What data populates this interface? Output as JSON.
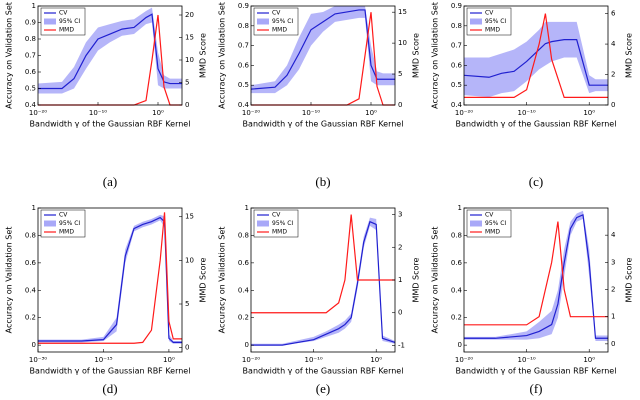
{
  "chart_data": [
    {
      "type": "line",
      "caption": "(a)",
      "xlabel": "Bandwidth γ of the Gaussian RBF Kernel",
      "ylabel": "Accuracy on Validation Set",
      "y2label": "MMD Score",
      "xscale": "log",
      "x": [
        1e-20,
        1e-16,
        1e-14,
        1e-12,
        1e-10,
        1e-08,
        1e-06,
        0.0001,
        0.01,
        0.1,
        1,
        10,
        100,
        10000
      ],
      "xlim": [
        1e-20,
        10000
      ],
      "xticks": [
        {
          "value": 1e-20,
          "label": "10⁻²⁰"
        },
        {
          "value": 1e-10,
          "label": "10⁻¹⁰"
        },
        {
          "value": 1,
          "label": "10⁰"
        }
      ],
      "ylim": [
        0.4,
        1
      ],
      "yticks": [
        0.4,
        0.5,
        0.6,
        0.7,
        0.8,
        0.9,
        1
      ],
      "y2lim": [
        0,
        22
      ],
      "y2ticks": [
        0,
        5,
        10,
        15,
        20
      ],
      "series": [
        {
          "name": "CV",
          "color": "#2020d0",
          "values": [
            0.5,
            0.5,
            0.56,
            0.7,
            0.8,
            0.83,
            0.86,
            0.87,
            0.93,
            0.95,
            0.62,
            0.54,
            0.53,
            0.53
          ]
        },
        {
          "name": "95% CI",
          "color": "#a8a8f8",
          "lower": [
            0.47,
            0.47,
            0.5,
            0.62,
            0.73,
            0.78,
            0.82,
            0.83,
            0.89,
            0.9,
            0.52,
            0.5,
            0.5,
            0.5
          ],
          "upper": [
            0.53,
            0.54,
            0.63,
            0.78,
            0.87,
            0.89,
            0.91,
            0.92,
            0.97,
            0.99,
            0.72,
            0.58,
            0.56,
            0.56
          ]
        },
        {
          "name": "MMD",
          "color": "#ff1a1a",
          "axis": "y2",
          "values": [
            0,
            0,
            0,
            0,
            0,
            0,
            0,
            0,
            1,
            10,
            20,
            4,
            0,
            0
          ]
        }
      ]
    },
    {
      "type": "line",
      "caption": "(b)",
      "xlabel": "Bandwidth γ of the Gaussian RBF Kernel",
      "ylabel": "Accuracy on Validation Set",
      "y2label": "MMD Score",
      "xscale": "log",
      "x": [
        1e-20,
        1e-16,
        1e-14,
        1e-12,
        1e-10,
        1e-08,
        1e-06,
        0.0001,
        0.01,
        0.1,
        1,
        10,
        100,
        10000
      ],
      "xlim": [
        1e-20,
        10000
      ],
      "xticks": [
        {
          "value": 1e-20,
          "label": "10⁻²⁰"
        },
        {
          "value": 1e-10,
          "label": "10⁻¹⁰"
        },
        {
          "value": 1,
          "label": "10⁰"
        }
      ],
      "ylim": [
        0.4,
        0.9
      ],
      "yticks": [
        0.4,
        0.5,
        0.6,
        0.7,
        0.8,
        0.9
      ],
      "y2lim": [
        0,
        16
      ],
      "y2ticks": [
        0,
        5,
        10,
        15
      ],
      "series": [
        {
          "name": "CV",
          "color": "#2020d0",
          "values": [
            0.48,
            0.49,
            0.55,
            0.66,
            0.78,
            0.82,
            0.86,
            0.87,
            0.88,
            0.88,
            0.6,
            0.53,
            0.53,
            0.53
          ]
        },
        {
          "name": "95% CI",
          "color": "#a8a8f8",
          "lower": [
            0.46,
            0.46,
            0.5,
            0.58,
            0.7,
            0.77,
            0.82,
            0.83,
            0.84,
            0.84,
            0.52,
            0.5,
            0.5,
            0.5
          ],
          "upper": [
            0.5,
            0.52,
            0.6,
            0.74,
            0.86,
            0.87,
            0.9,
            0.9,
            0.9,
            0.9,
            0.7,
            0.57,
            0.56,
            0.56
          ]
        },
        {
          "name": "MMD",
          "color": "#ff1a1a",
          "axis": "y2",
          "values": [
            0,
            0,
            0,
            0,
            0,
            0,
            0,
            0,
            1,
            8,
            15,
            3,
            0,
            0
          ]
        }
      ]
    },
    {
      "type": "line",
      "caption": "(c)",
      "xlabel": "Bandwidth γ of the Gaussian RBF Kernel",
      "ylabel": "Accuracy on Validation Set",
      "y2label": "MMD Score",
      "xscale": "log",
      "x": [
        1e-20,
        1e-16,
        1e-14,
        1e-12,
        1e-10,
        1e-08,
        1e-07,
        1e-06,
        0.0001,
        0.01,
        1,
        10,
        1000
      ],
      "xlim": [
        1e-20,
        1000
      ],
      "xticks": [
        {
          "value": 1e-20,
          "label": "10⁻²⁰"
        },
        {
          "value": 1e-10,
          "label": "10⁻¹⁰"
        },
        {
          "value": 1,
          "label": "10⁰"
        }
      ],
      "ylim": [
        0.4,
        0.9
      ],
      "yticks": [
        0.4,
        0.5,
        0.6,
        0.7,
        0.8,
        0.9
      ],
      "y2lim": [
        0,
        6.5
      ],
      "y2ticks": [
        0,
        2,
        4,
        6
      ],
      "series": [
        {
          "name": "CV",
          "color": "#2020d0",
          "values": [
            0.55,
            0.54,
            0.56,
            0.57,
            0.62,
            0.68,
            0.71,
            0.72,
            0.73,
            0.73,
            0.5,
            0.5,
            0.5
          ]
        },
        {
          "name": "95% CI",
          "color": "#a8a8f8",
          "lower": [
            0.45,
            0.44,
            0.46,
            0.47,
            0.52,
            0.58,
            0.6,
            0.62,
            0.64,
            0.64,
            0.46,
            0.47,
            0.47
          ],
          "upper": [
            0.64,
            0.64,
            0.66,
            0.68,
            0.72,
            0.78,
            0.82,
            0.82,
            0.82,
            0.82,
            0.55,
            0.53,
            0.53
          ]
        },
        {
          "name": "MMD",
          "color": "#ff1a1a",
          "axis": "y2",
          "values": [
            0.5,
            0.5,
            0.5,
            0.5,
            1,
            4,
            6,
            3,
            0.5,
            0.5,
            0.5,
            0.5,
            0.5
          ]
        }
      ]
    },
    {
      "type": "line",
      "caption": "(d)",
      "xlabel": "Bandwidth γ of the Gaussian RBF Kernel",
      "ylabel": "Accuracy on Validation Set",
      "y2label": "MMD Score",
      "xscale": "log",
      "x": [
        1e-30,
        1e-20,
        1e-15,
        1e-12,
        1e-10,
        1e-08,
        1e-06,
        0.0001,
        0.01,
        0.1,
        1,
        10,
        1000
      ],
      "xlim": [
        1e-30,
        1000
      ],
      "xticks": [
        {
          "value": 1e-30,
          "label": "10⁻³⁰"
        },
        {
          "value": 1e-15,
          "label": "10⁻¹⁵"
        },
        {
          "value": 1,
          "label": "10⁰"
        }
      ],
      "ylim": [
        -0.05,
        1
      ],
      "yticks": [
        0,
        0.2,
        0.4,
        0.6,
        0.8,
        1
      ],
      "y2lim": [
        -0.5,
        16
      ],
      "y2ticks": [
        0,
        5,
        10,
        15
      ],
      "series": [
        {
          "name": "CV",
          "color": "#2020d0",
          "values": [
            0.03,
            0.03,
            0.04,
            0.15,
            0.65,
            0.85,
            0.88,
            0.9,
            0.93,
            0.9,
            0.05,
            0.02,
            0.02
          ]
        },
        {
          "name": "95% CI",
          "color": "#a8a8f8",
          "lower": [
            0.02,
            0.02,
            0.03,
            0.1,
            0.6,
            0.83,
            0.86,
            0.88,
            0.91,
            0.86,
            0.03,
            0.01,
            0.01
          ],
          "upper": [
            0.04,
            0.04,
            0.06,
            0.2,
            0.7,
            0.87,
            0.9,
            0.92,
            0.95,
            0.94,
            0.08,
            0.03,
            0.03
          ]
        },
        {
          "name": "MMD",
          "color": "#ff1a1a",
          "axis": "y2",
          "values": [
            0.5,
            0.5,
            0.5,
            0.5,
            0.5,
            0.5,
            0.6,
            2,
            10,
            15.5,
            3,
            1,
            1
          ]
        }
      ]
    },
    {
      "type": "line",
      "caption": "(e)",
      "xlabel": "Bandwidth γ of the Gaussian RBF Kernel",
      "ylabel": "Accuracy on Validation Set",
      "y2label": "MMD Score",
      "xscale": "log",
      "x": [
        1e-20,
        1e-15,
        1e-10,
        1e-08,
        1e-06,
        1e-05,
        0.0001,
        0.001,
        0.01,
        0.1,
        1,
        10,
        1000
      ],
      "xlim": [
        1e-20,
        1000
      ],
      "xticks": [
        {
          "value": 1e-20,
          "label": "10⁻²⁰"
        },
        {
          "value": 1e-10,
          "label": "10⁻¹⁰"
        },
        {
          "value": 1,
          "label": "10⁰"
        }
      ],
      "ylim": [
        -0.05,
        1
      ],
      "yticks": [
        0,
        0.2,
        0.4,
        0.6,
        0.8,
        1
      ],
      "y2lim": [
        -1.2,
        3.2
      ],
      "y2ticks": [
        -1,
        0,
        1,
        2,
        3
      ],
      "series": [
        {
          "name": "CV",
          "color": "#2020d0",
          "values": [
            0,
            0,
            0.04,
            0.08,
            0.12,
            0.15,
            0.2,
            0.45,
            0.75,
            0.9,
            0.88,
            0.05,
            0.02
          ]
        },
        {
          "name": "95% CI",
          "color": "#a8a8f8",
          "lower": [
            0,
            0,
            0.03,
            0.06,
            0.09,
            0.12,
            0.17,
            0.41,
            0.71,
            0.87,
            0.84,
            0.03,
            0.01
          ],
          "upper": [
            0.01,
            0.01,
            0.06,
            0.1,
            0.15,
            0.18,
            0.23,
            0.49,
            0.79,
            0.93,
            0.92,
            0.07,
            0.03
          ]
        },
        {
          "name": "MMD",
          "color": "#ff1a1a",
          "axis": "y2",
          "values": [
            0,
            0,
            0,
            0,
            0.3,
            1,
            3,
            1,
            1,
            1,
            1,
            1,
            1
          ]
        }
      ]
    },
    {
      "type": "line",
      "caption": "(f)",
      "xlabel": "Bandwidth γ of the Gaussian RBF Kernel",
      "ylabel": "Accuracy on Validation Set",
      "y2label": "MMD Score",
      "xscale": "log",
      "x": [
        1e-20,
        1e-15,
        1e-10,
        1e-08,
        1e-06,
        1e-05,
        0.0001,
        0.001,
        0.01,
        0.1,
        1,
        10,
        1000
      ],
      "xlim": [
        1e-20,
        1000
      ],
      "xticks": [
        {
          "value": 1e-20,
          "label": "10⁻²⁰"
        },
        {
          "value": 1e-10,
          "label": "10⁻¹⁰"
        },
        {
          "value": 1,
          "label": "10⁰"
        }
      ],
      "ylim": [
        -0.05,
        1
      ],
      "yticks": [
        0,
        0.2,
        0.4,
        0.6,
        0.8,
        1
      ],
      "y2lim": [
        -0.3,
        5
      ],
      "y2ticks": [
        0,
        1,
        2,
        3,
        4
      ],
      "series": [
        {
          "name": "CV",
          "color": "#2020d0",
          "values": [
            0.05,
            0.05,
            0.07,
            0.1,
            0.15,
            0.3,
            0.6,
            0.85,
            0.93,
            0.95,
            0.6,
            0.05,
            0.05
          ]
        },
        {
          "name": "95% CI",
          "color": "#a8a8f8",
          "lower": [
            0.04,
            0.04,
            0.04,
            0.05,
            0.08,
            0.2,
            0.5,
            0.8,
            0.9,
            0.92,
            0.5,
            0.03,
            0.03
          ],
          "upper": [
            0.06,
            0.06,
            0.1,
            0.17,
            0.25,
            0.4,
            0.7,
            0.9,
            0.96,
            0.98,
            0.7,
            0.07,
            0.07
          ]
        },
        {
          "name": "MMD",
          "color": "#ff1a1a",
          "axis": "y2",
          "values": [
            0.7,
            0.7,
            0.7,
            1,
            3,
            4.5,
            2,
            1,
            1,
            1,
            1,
            1,
            1
          ]
        }
      ]
    }
  ]
}
